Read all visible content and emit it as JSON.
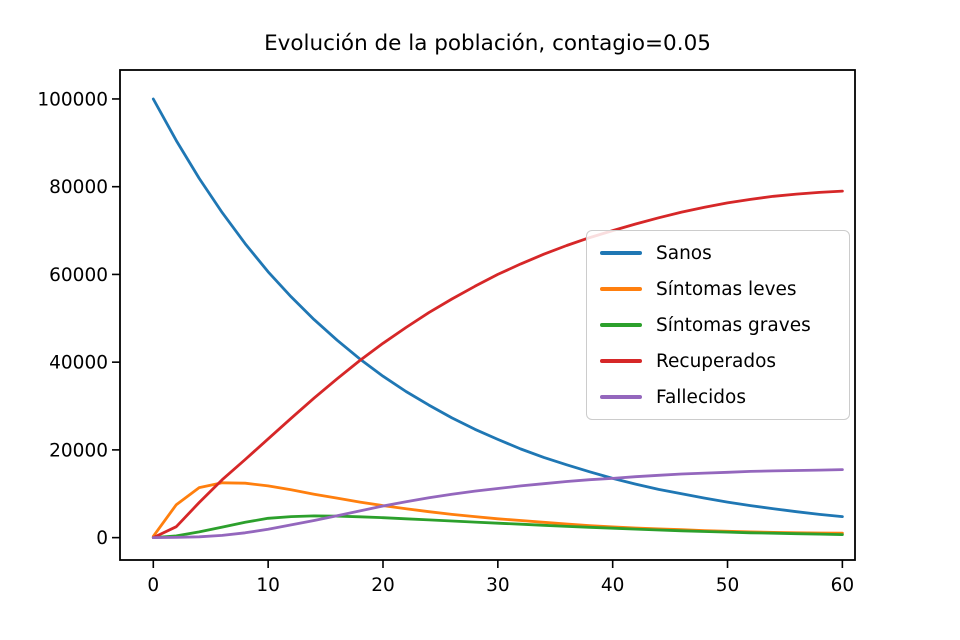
{
  "figure": {
    "background": "#ffffff",
    "axes_color": "#000000",
    "text_color": "#000000"
  },
  "chart_data": {
    "type": "line",
    "title": "Evolución de la población, contagio=0.05",
    "xlabel": "",
    "ylabel": "",
    "grid": false,
    "legend_position": "center right",
    "xlim": [
      -2.9,
      61.1
    ],
    "ylim": [
      -5100,
      106600
    ],
    "xticks": {
      "values": [
        0,
        10,
        20,
        30,
        40,
        50,
        60
      ],
      "labels": [
        "0",
        "10",
        "20",
        "30",
        "40",
        "50",
        "60"
      ]
    },
    "yticks": {
      "values": [
        0,
        20000,
        40000,
        60000,
        80000,
        100000
      ],
      "labels": [
        "0",
        "20000",
        "40000",
        "60000",
        "80000",
        "100000"
      ]
    },
    "x": [
      0,
      2,
      4,
      6,
      8,
      10,
      12,
      14,
      16,
      18,
      20,
      22,
      24,
      26,
      28,
      30,
      32,
      34,
      36,
      38,
      40,
      42,
      44,
      46,
      48,
      50,
      52,
      54,
      56,
      58,
      60
    ],
    "series": [
      {
        "name": "Sanos",
        "color": "#1f77b4",
        "values": [
          100000,
          90500,
          81900,
          74100,
          67000,
          60600,
          54900,
          49700,
          45000,
          40700,
          36800,
          33300,
          30200,
          27300,
          24700,
          22400,
          20200,
          18300,
          16600,
          15000,
          13500,
          12200,
          11000,
          10000,
          9000,
          8100,
          7300,
          6600,
          5900,
          5300,
          4800
        ]
      },
      {
        "name": "Síntomas leves",
        "color": "#ff7f0e",
        "values": [
          300,
          7500,
          11400,
          12500,
          12400,
          11800,
          10900,
          9900,
          9000,
          8100,
          7300,
          6600,
          5900,
          5300,
          4800,
          4300,
          3900,
          3500,
          3100,
          2750,
          2450,
          2200,
          2000,
          1800,
          1600,
          1450,
          1300,
          1200,
          1100,
          1050,
          1000
        ]
      },
      {
        "name": "Síntomas graves",
        "color": "#2ca02c",
        "values": [
          0,
          400,
          1300,
          2400,
          3500,
          4400,
          4800,
          4950,
          4900,
          4750,
          4550,
          4300,
          4050,
          3800,
          3550,
          3300,
          3050,
          2800,
          2550,
          2350,
          2150,
          1950,
          1750,
          1550,
          1400,
          1250,
          1100,
          1000,
          900,
          800,
          700
        ]
      },
      {
        "name": "Recuperados",
        "color": "#d62728",
        "values": [
          0,
          2500,
          8000,
          13200,
          17800,
          22500,
          27200,
          31800,
          36200,
          40400,
          44300,
          47900,
          51300,
          54400,
          57300,
          60000,
          62400,
          64600,
          66600,
          68400,
          70000,
          71500,
          72900,
          74200,
          75300,
          76300,
          77100,
          77800,
          78300,
          78700,
          79000
        ]
      },
      {
        "name": "Fallecidos",
        "color": "#9467bd",
        "values": [
          0,
          50,
          200,
          500,
          1100,
          1900,
          2900,
          3900,
          5000,
          6100,
          7200,
          8200,
          9100,
          9900,
          10600,
          11200,
          11800,
          12300,
          12800,
          13200,
          13500,
          13900,
          14200,
          14500,
          14700,
          14900,
          15100,
          15200,
          15300,
          15400,
          15500
        ]
      }
    ]
  }
}
